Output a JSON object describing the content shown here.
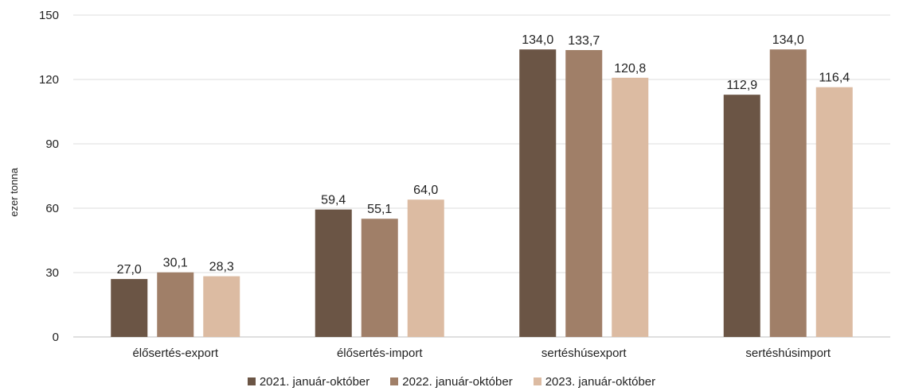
{
  "chart_data": {
    "type": "bar",
    "categories": [
      "élősertés-export",
      "élősertés-import",
      "sertéshúsexport",
      "sertéshúsimport"
    ],
    "series": [
      {
        "name": "2021. január-október",
        "color": "#6b5545",
        "values": [
          27.0,
          59.4,
          134.0,
          112.9
        ],
        "labels": [
          "27,0",
          "59,4",
          "134,0",
          "112,9"
        ]
      },
      {
        "name": "2022. január-október",
        "color": "#a07f68",
        "values": [
          30.1,
          55.1,
          133.7,
          134.0
        ],
        "labels": [
          "30,1",
          "55,1",
          "133,7",
          "134,0"
        ]
      },
      {
        "name": "2023. január-október",
        "color": "#dcbba2",
        "values": [
          28.3,
          64.0,
          120.8,
          116.4
        ],
        "labels": [
          "28,3",
          "64,0",
          "120,8",
          "116,4"
        ]
      }
    ],
    "ylabel": "ezer tonna",
    "ylim": [
      0,
      150
    ],
    "yticks": [
      0,
      30,
      60,
      90,
      120,
      150
    ],
    "grid": true,
    "legend": "bottom"
  }
}
